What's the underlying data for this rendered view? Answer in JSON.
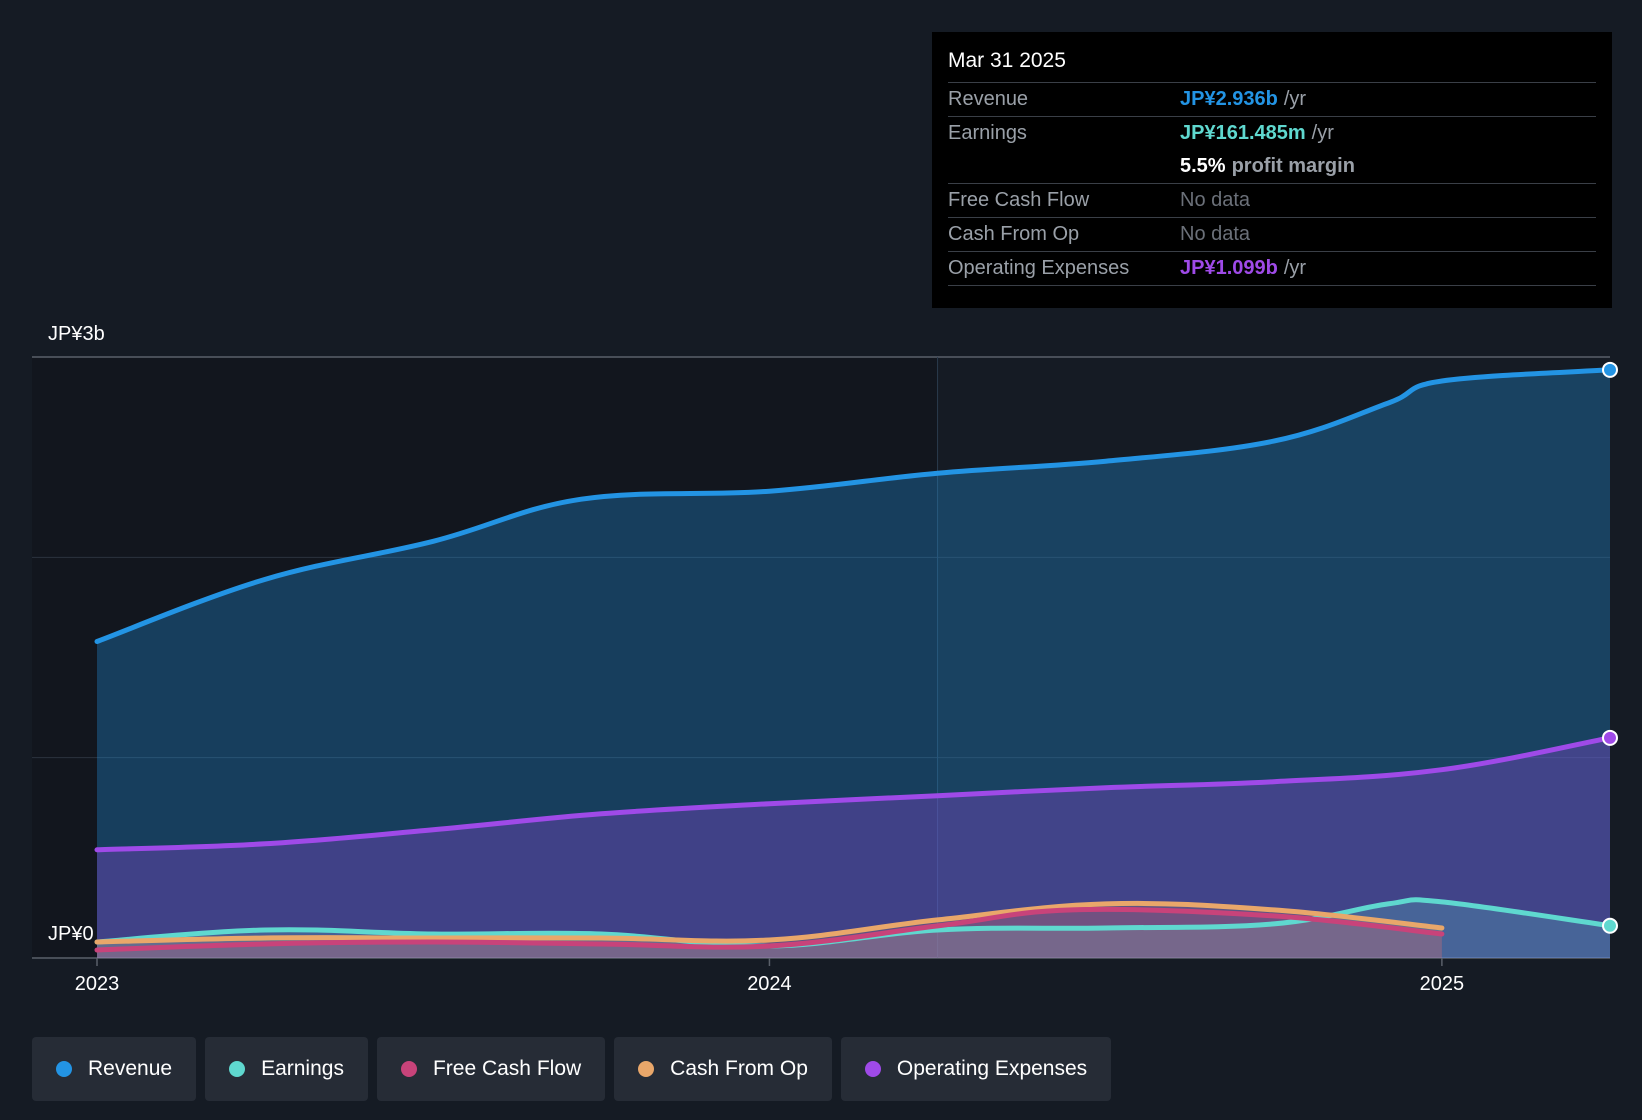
{
  "tooltip": {
    "date": "Mar 31 2025",
    "revenue": {
      "label": "Revenue",
      "value": "JP¥2.936b",
      "unit": "/yr"
    },
    "earnings": {
      "label": "Earnings",
      "value": "JP¥161.485m",
      "unit": "/yr"
    },
    "margin": {
      "value": "5.5%",
      "label": "profit margin"
    },
    "fcf": {
      "label": "Free Cash Flow",
      "value": "No data"
    },
    "cfo": {
      "label": "Cash From Op",
      "value": "No data"
    },
    "opex": {
      "label": "Operating Expenses",
      "value": "JP¥1.099b",
      "unit": "/yr"
    }
  },
  "legend": {
    "revenue": "Revenue",
    "earnings": "Earnings",
    "fcf": "Free Cash Flow",
    "cfo": "Cash From Op",
    "opex": "Operating Expenses"
  },
  "colors": {
    "revenue": "#2394e4",
    "earnings": "#5fd8cf",
    "fcf": "#c8437a",
    "cfo": "#e9a76a",
    "opex": "#9f4ae8",
    "background": "#151b24",
    "past_region": "#12161e"
  },
  "chart_data": {
    "type": "area",
    "y_top_label": "JP¥3b",
    "y_bottom_label": "JP¥0",
    "ylim": [
      0,
      3.0
    ],
    "y_unit": "JP¥ billions",
    "xlim": [
      2023.0,
      2025.25
    ],
    "x_ticks": [
      {
        "value": 2023,
        "label": "2023"
      },
      {
        "value": 2024,
        "label": "2024"
      },
      {
        "value": 2025,
        "label": "2025"
      }
    ],
    "forecast_start": 2024.25,
    "grid": true,
    "series": [
      {
        "key": "revenue",
        "name": "Revenue",
        "x": [
          2023.0,
          2023.25,
          2023.5,
          2023.72,
          2024.0,
          2024.25,
          2024.5,
          2024.75,
          2024.92,
          2025.0,
          2025.25
        ],
        "y": [
          1.58,
          1.89,
          2.08,
          2.29,
          2.33,
          2.42,
          2.48,
          2.58,
          2.77,
          2.88,
          2.936
        ]
      },
      {
        "key": "earnings",
        "name": "Earnings",
        "x": [
          2023.0,
          2023.25,
          2023.5,
          2023.75,
          2024.0,
          2024.25,
          2024.5,
          2024.75,
          2024.92,
          2025.0,
          2025.25
        ],
        "y": [
          0.08,
          0.14,
          0.12,
          0.12,
          0.06,
          0.14,
          0.15,
          0.17,
          0.27,
          0.28,
          0.161
        ]
      },
      {
        "key": "fcf",
        "name": "Free Cash Flow",
        "x": [
          2023.0,
          2023.25,
          2023.5,
          2023.75,
          2024.0,
          2024.25,
          2024.45,
          2024.75,
          2025.0
        ],
        "y": [
          0.04,
          0.07,
          0.08,
          0.07,
          0.06,
          0.16,
          0.24,
          0.21,
          0.12
        ]
      },
      {
        "key": "cfo",
        "name": "Cash From Op",
        "x": [
          2023.0,
          2023.25,
          2023.5,
          2023.75,
          2024.0,
          2024.25,
          2024.5,
          2024.75,
          2025.0
        ],
        "y": [
          0.08,
          0.1,
          0.1,
          0.1,
          0.09,
          0.19,
          0.27,
          0.24,
          0.15
        ]
      },
      {
        "key": "opex",
        "name": "Operating Expenses",
        "x": [
          2023.0,
          2023.25,
          2023.5,
          2023.75,
          2024.0,
          2024.25,
          2024.5,
          2024.75,
          2025.0,
          2025.25
        ],
        "y": [
          0.54,
          0.57,
          0.64,
          0.72,
          0.77,
          0.81,
          0.85,
          0.88,
          0.94,
          1.099
        ]
      }
    ]
  }
}
